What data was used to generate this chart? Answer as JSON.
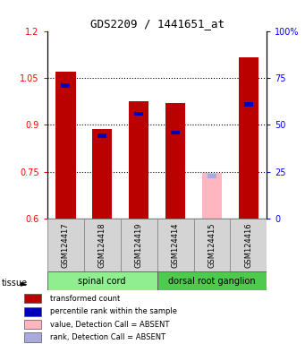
{
  "title": "GDS2209 / 1441651_at",
  "samples": [
    "GSM124417",
    "GSM124418",
    "GSM124419",
    "GSM124414",
    "GSM124415",
    "GSM124416"
  ],
  "red_values": [
    1.07,
    0.885,
    0.975,
    0.97,
    0.745,
    1.115
  ],
  "blue_values": [
    1.025,
    0.865,
    0.935,
    0.875,
    0.735,
    0.965
  ],
  "absent_mask": [
    false,
    false,
    false,
    false,
    true,
    false
  ],
  "ylim_left": [
    0.6,
    1.2
  ],
  "ylim_right": [
    0,
    100
  ],
  "yticks_left": [
    0.6,
    0.75,
    0.9,
    1.05,
    1.2
  ],
  "yticks_right": [
    0,
    25,
    50,
    75,
    100
  ],
  "yticklabels_left": [
    "0.6",
    "0.75",
    "0.9",
    "1.05",
    "1.2"
  ],
  "yticklabels_right": [
    "0",
    "25",
    "50",
    "75",
    "100%"
  ],
  "dotted_lines": [
    1.05,
    0.9,
    0.75
  ],
  "tissue_groups": [
    {
      "label": "spinal cord",
      "start": 0,
      "end": 3,
      "color": "#90ee90"
    },
    {
      "label": "dorsal root ganglion",
      "start": 3,
      "end": 6,
      "color": "#4ecb4e"
    }
  ],
  "red_color": "#bb0000",
  "blue_color": "#0000bb",
  "absent_red_color": "#ffb6c1",
  "absent_blue_color": "#aaaadd",
  "bar_width": 0.55,
  "legend_items": [
    {
      "color": "#bb0000",
      "label": "transformed count"
    },
    {
      "color": "#0000bb",
      "label": "percentile rank within the sample"
    },
    {
      "color": "#ffb6c1",
      "label": "value, Detection Call = ABSENT"
    },
    {
      "color": "#aaaadd",
      "label": "rank, Detection Call = ABSENT"
    }
  ]
}
